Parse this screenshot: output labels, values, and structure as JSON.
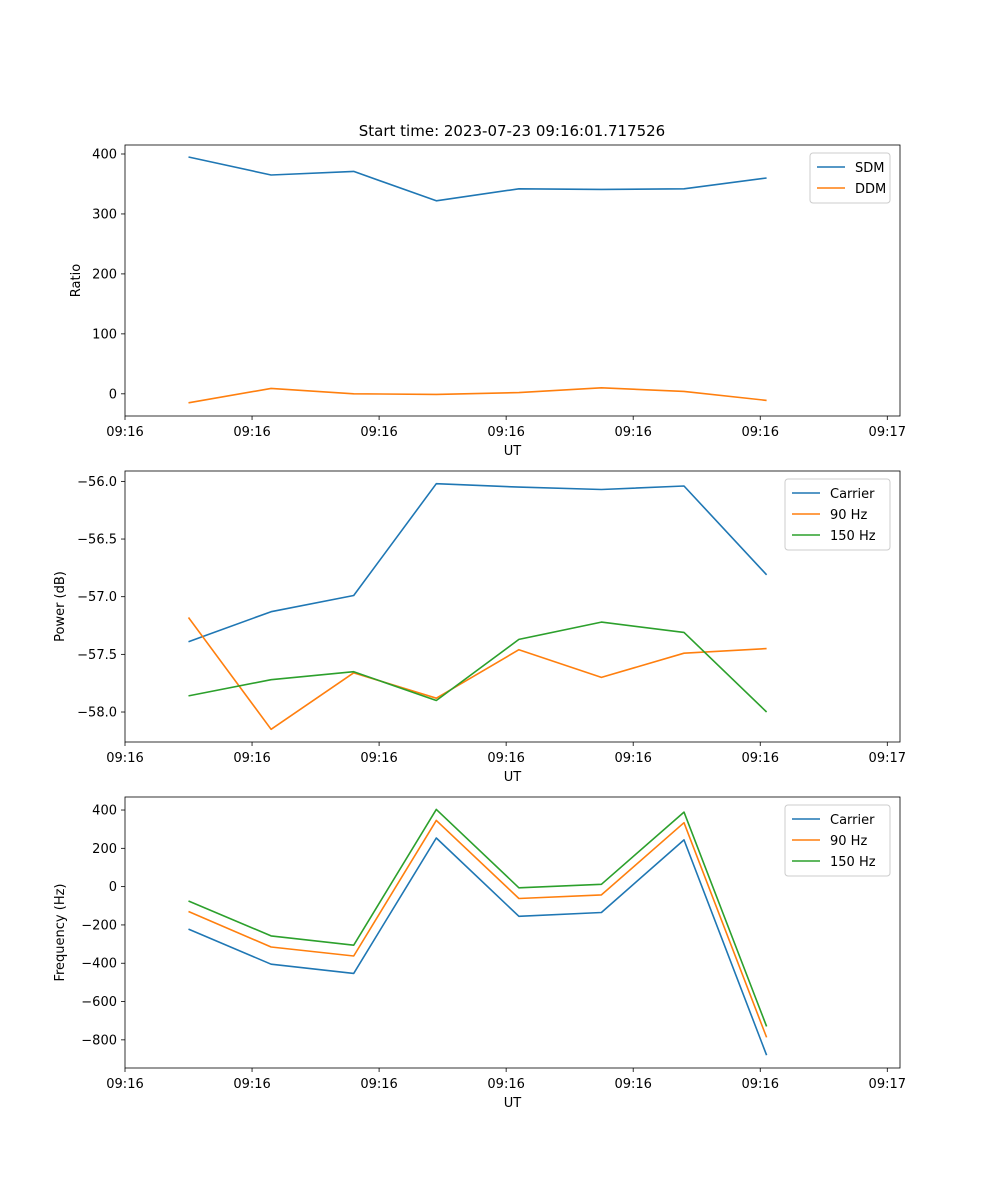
{
  "figure": {
    "title": "Start time: 2023-07-23 09:16:01.717526"
  },
  "chart_data": [
    {
      "type": "line",
      "xlabel": "UT",
      "ylabel": "Ratio",
      "xlim": [
        0,
        12.2
      ],
      "ylim": [
        -37,
        415
      ],
      "xticks": [
        0,
        2,
        4,
        6,
        8,
        10,
        12
      ],
      "xtick_labels": [
        "09:16",
        "09:16",
        "09:16",
        "09:16",
        "09:16",
        "09:16",
        "09:17"
      ],
      "yticks": [
        0,
        100,
        200,
        300,
        400
      ],
      "ytick_labels": [
        "0",
        "100",
        "200",
        "300",
        "400"
      ],
      "legend": "top-right",
      "x": [
        1,
        2.3,
        3.6,
        4.9,
        6.2,
        7.5,
        8.8,
        10.1
      ],
      "series": [
        {
          "name": "SDM",
          "color": "#1f77b4",
          "values": [
            395,
            365,
            371,
            322,
            342,
            341,
            342,
            360
          ]
        },
        {
          "name": "DDM",
          "color": "#ff7f0e",
          "values": [
            -15,
            9,
            0,
            -1,
            2,
            10,
            4,
            -11
          ]
        }
      ]
    },
    {
      "type": "line",
      "xlabel": "UT",
      "ylabel": "Power (dB)",
      "xlim": [
        0,
        12.2
      ],
      "ylim": [
        -58.26,
        -55.91
      ],
      "xticks": [
        0,
        2,
        4,
        6,
        8,
        10,
        12
      ],
      "xtick_labels": [
        "09:16",
        "09:16",
        "09:16",
        "09:16",
        "09:16",
        "09:16",
        "09:17"
      ],
      "yticks": [
        -58.0,
        -57.5,
        -57.0,
        -56.5,
        -56.0
      ],
      "ytick_labels": [
        "−58.0",
        "−57.5",
        "−57.0",
        "−56.5",
        "−56.0"
      ],
      "legend": "top-right",
      "x": [
        1,
        2.3,
        3.6,
        4.9,
        6.2,
        7.5,
        8.8,
        10.1
      ],
      "series": [
        {
          "name": "Carrier",
          "color": "#1f77b4",
          "values": [
            -57.39,
            -57.13,
            -56.99,
            -56.02,
            -56.05,
            -56.07,
            -56.04,
            -56.81
          ]
        },
        {
          "name": "90 Hz",
          "color": "#ff7f0e",
          "values": [
            -57.18,
            -58.15,
            -57.66,
            -57.88,
            -57.46,
            -57.7,
            -57.49,
            -57.45
          ]
        },
        {
          "name": "150 Hz",
          "color": "#2ca02c",
          "values": [
            -57.86,
            -57.72,
            -57.65,
            -57.9,
            -57.37,
            -57.22,
            -57.31,
            -58.0
          ]
        }
      ]
    },
    {
      "type": "line",
      "xlabel": "UT",
      "ylabel": "Frequency (Hz)",
      "xlim": [
        0,
        12.2
      ],
      "ylim": [
        -947,
        468
      ],
      "xticks": [
        0,
        2,
        4,
        6,
        8,
        10,
        12
      ],
      "xtick_labels": [
        "09:16",
        "09:16",
        "09:16",
        "09:16",
        "09:16",
        "09:16",
        "09:17"
      ],
      "yticks": [
        -800,
        -600,
        -400,
        -200,
        0,
        200,
        400
      ],
      "ytick_labels": [
        "−800",
        "−600",
        "−400",
        "−200",
        "0",
        "200",
        "400"
      ],
      "legend": "top-right",
      "x": [
        1,
        2.3,
        3.6,
        4.9,
        6.2,
        7.5,
        8.8,
        10.1
      ],
      "series": [
        {
          "name": "Carrier",
          "color": "#1f77b4",
          "values": [
            -222,
            -405,
            -453,
            254,
            -155,
            -135,
            244,
            -880
          ]
        },
        {
          "name": "90 Hz",
          "color": "#ff7f0e",
          "values": [
            -130,
            -315,
            -362,
            346,
            -62,
            -43,
            334,
            -787
          ]
        },
        {
          "name": "150 Hz",
          "color": "#2ca02c",
          "values": [
            -75,
            -257,
            -306,
            403,
            -6,
            12,
            389,
            -730
          ]
        }
      ]
    }
  ]
}
